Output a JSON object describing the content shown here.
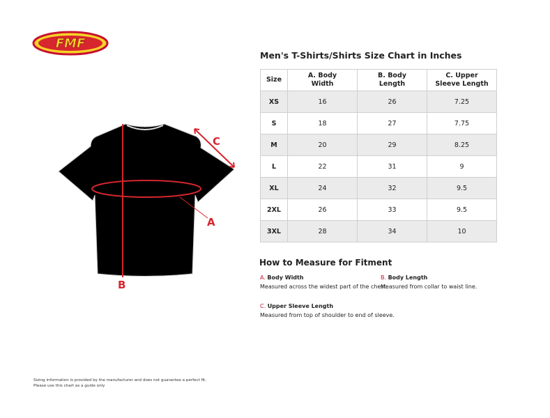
{
  "brand": {
    "logo_text": "FMF",
    "accent": "#d7262e",
    "logo_yellow": "#f5d327"
  },
  "chart": {
    "title": "Men's T-Shirts/Shirts Size Chart in Inches",
    "headers": [
      "Size",
      "A. Body Width",
      "B. Body Length",
      "C. Upper Sleeve Length"
    ],
    "rows": [
      [
        "XS",
        "16",
        "26",
        "7.25"
      ],
      [
        "S",
        "18",
        "27",
        "7.75"
      ],
      [
        "M",
        "20",
        "29",
        "8.25"
      ],
      [
        "L",
        "22",
        "31",
        "9"
      ],
      [
        "XL",
        "24",
        "32",
        "9.5"
      ],
      [
        "2XL",
        "26",
        "33",
        "9.5"
      ],
      [
        "3XL",
        "28",
        "34",
        "10"
      ]
    ]
  },
  "diagram": {
    "label_a": "A",
    "label_b": "B",
    "label_c": "C"
  },
  "howto": {
    "title": "How to Measure for Fitment",
    "items": [
      {
        "letter": "A.",
        "name": "Body Width",
        "desc": "Measured across the widest part of the chest."
      },
      {
        "letter": "B.",
        "name": "Body Length",
        "desc": "Measured from collar to waist line."
      },
      {
        "letter": "C.",
        "name": "Upper Sleeve Length",
        "desc": "Measured from top of shoulder to end of sleeve."
      }
    ]
  },
  "disclaimer": {
    "line1": "Sizing information is provided by the manufacturer and does not guarantee a perfect fit.",
    "line2": "Please use this chart as a guide only"
  }
}
